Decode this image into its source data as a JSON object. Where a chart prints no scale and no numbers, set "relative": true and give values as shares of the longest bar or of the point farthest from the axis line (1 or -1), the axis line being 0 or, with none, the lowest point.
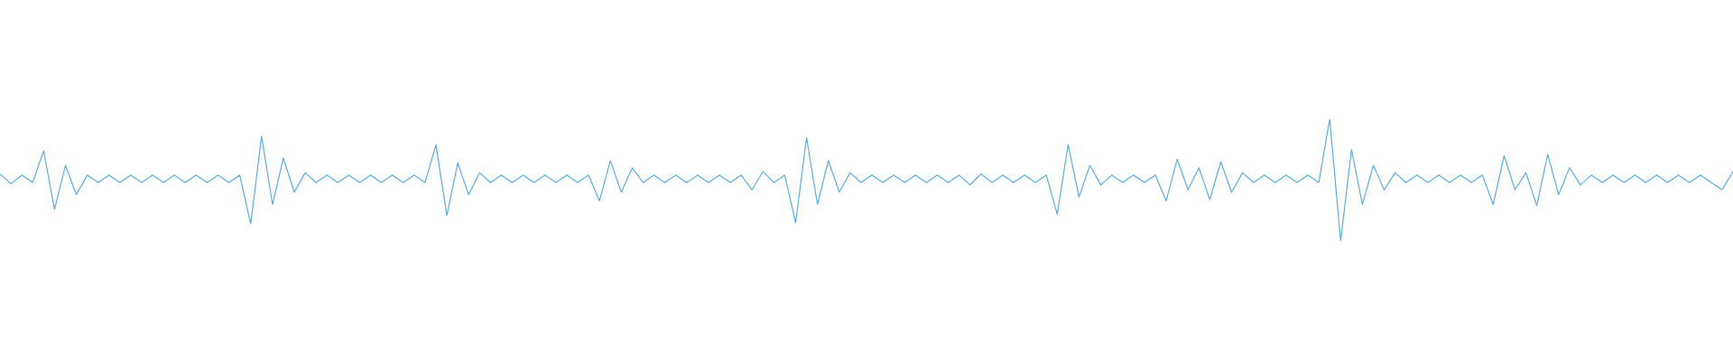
{
  "chart_data": {
    "type": "line",
    "relative": true,
    "grid": false,
    "legend": false,
    "tick_labels": false,
    "marker": "none",
    "categories": [
      null,
      null,
      null,
      null,
      null,
      null,
      null,
      null,
      null,
      null,
      null,
      null,
      null,
      null,
      null,
      null,
      null,
      null,
      null,
      null,
      null,
      null,
      null,
      null,
      null,
      null,
      null,
      null,
      null,
      null,
      null,
      null,
      null,
      null,
      null,
      null,
      null,
      null,
      null,
      null,
      null,
      null,
      null,
      null,
      null,
      null,
      null,
      null,
      null,
      null,
      null,
      null,
      null,
      null,
      null,
      null,
      null,
      null,
      null,
      null,
      null,
      null,
      null,
      null,
      null,
      null,
      null,
      null,
      null,
      null,
      null,
      null,
      null,
      null,
      null,
      null,
      null,
      null,
      null,
      null,
      null,
      null,
      null,
      null,
      null,
      null,
      null,
      null,
      null,
      null,
      null,
      null,
      null,
      null,
      null,
      null,
      null,
      null,
      null,
      null,
      null,
      null,
      null,
      null,
      null,
      null,
      null,
      null,
      null,
      null,
      null,
      null,
      null,
      null,
      null,
      null,
      null,
      null,
      null,
      null,
      null,
      null,
      null,
      null,
      null,
      null,
      null,
      null,
      null,
      null,
      null,
      null,
      null,
      null,
      null,
      null,
      null,
      null,
      null,
      null,
      null,
      null,
      null,
      null,
      null,
      null,
      null,
      null,
      null,
      null,
      null,
      null,
      null,
      null,
      null,
      null,
      null,
      null,
      null,
      null
    ],
    "series": [
      {
        "color": "#5dade2",
        "values": [
          0.55,
          0.47,
          0.54,
          0.48,
          0.74,
          0.26,
          0.62,
          0.38,
          0.54,
          0.48,
          0.54,
          0.48,
          0.54,
          0.48,
          0.54,
          0.48,
          0.54,
          0.48,
          0.54,
          0.48,
          0.54,
          0.48,
          0.54,
          0.14,
          0.86,
          0.3,
          0.68,
          0.4,
          0.56,
          0.48,
          0.54,
          0.48,
          0.54,
          0.48,
          0.54,
          0.48,
          0.54,
          0.48,
          0.54,
          0.48,
          0.79,
          0.21,
          0.64,
          0.38,
          0.56,
          0.48,
          0.54,
          0.48,
          0.54,
          0.48,
          0.54,
          0.48,
          0.54,
          0.48,
          0.54,
          0.33,
          0.66,
          0.4,
          0.6,
          0.48,
          0.54,
          0.48,
          0.54,
          0.48,
          0.54,
          0.48,
          0.54,
          0.48,
          0.54,
          0.42,
          0.57,
          0.48,
          0.54,
          0.15,
          0.85,
          0.3,
          0.66,
          0.4,
          0.56,
          0.48,
          0.54,
          0.48,
          0.54,
          0.48,
          0.54,
          0.48,
          0.54,
          0.48,
          0.54,
          0.46,
          0.55,
          0.48,
          0.54,
          0.48,
          0.54,
          0.48,
          0.54,
          0.22,
          0.79,
          0.36,
          0.62,
          0.46,
          0.54,
          0.48,
          0.54,
          0.48,
          0.54,
          0.33,
          0.67,
          0.42,
          0.6,
          0.34,
          0.65,
          0.4,
          0.56,
          0.48,
          0.54,
          0.48,
          0.54,
          0.48,
          0.54,
          0.48,
          1,
          0,
          0.75,
          0.3,
          0.62,
          0.42,
          0.56,
          0.48,
          0.54,
          0.48,
          0.54,
          0.48,
          0.54,
          0.48,
          0.54,
          0.3,
          0.7,
          0.42,
          0.56,
          0.29,
          0.71,
          0.38,
          0.6,
          0.46,
          0.54,
          0.48,
          0.54,
          0.48,
          0.54,
          0.48,
          0.54,
          0.48,
          0.54,
          0.48,
          0.54,
          0.48,
          0.42,
          0.57
        ]
      }
    ]
  }
}
